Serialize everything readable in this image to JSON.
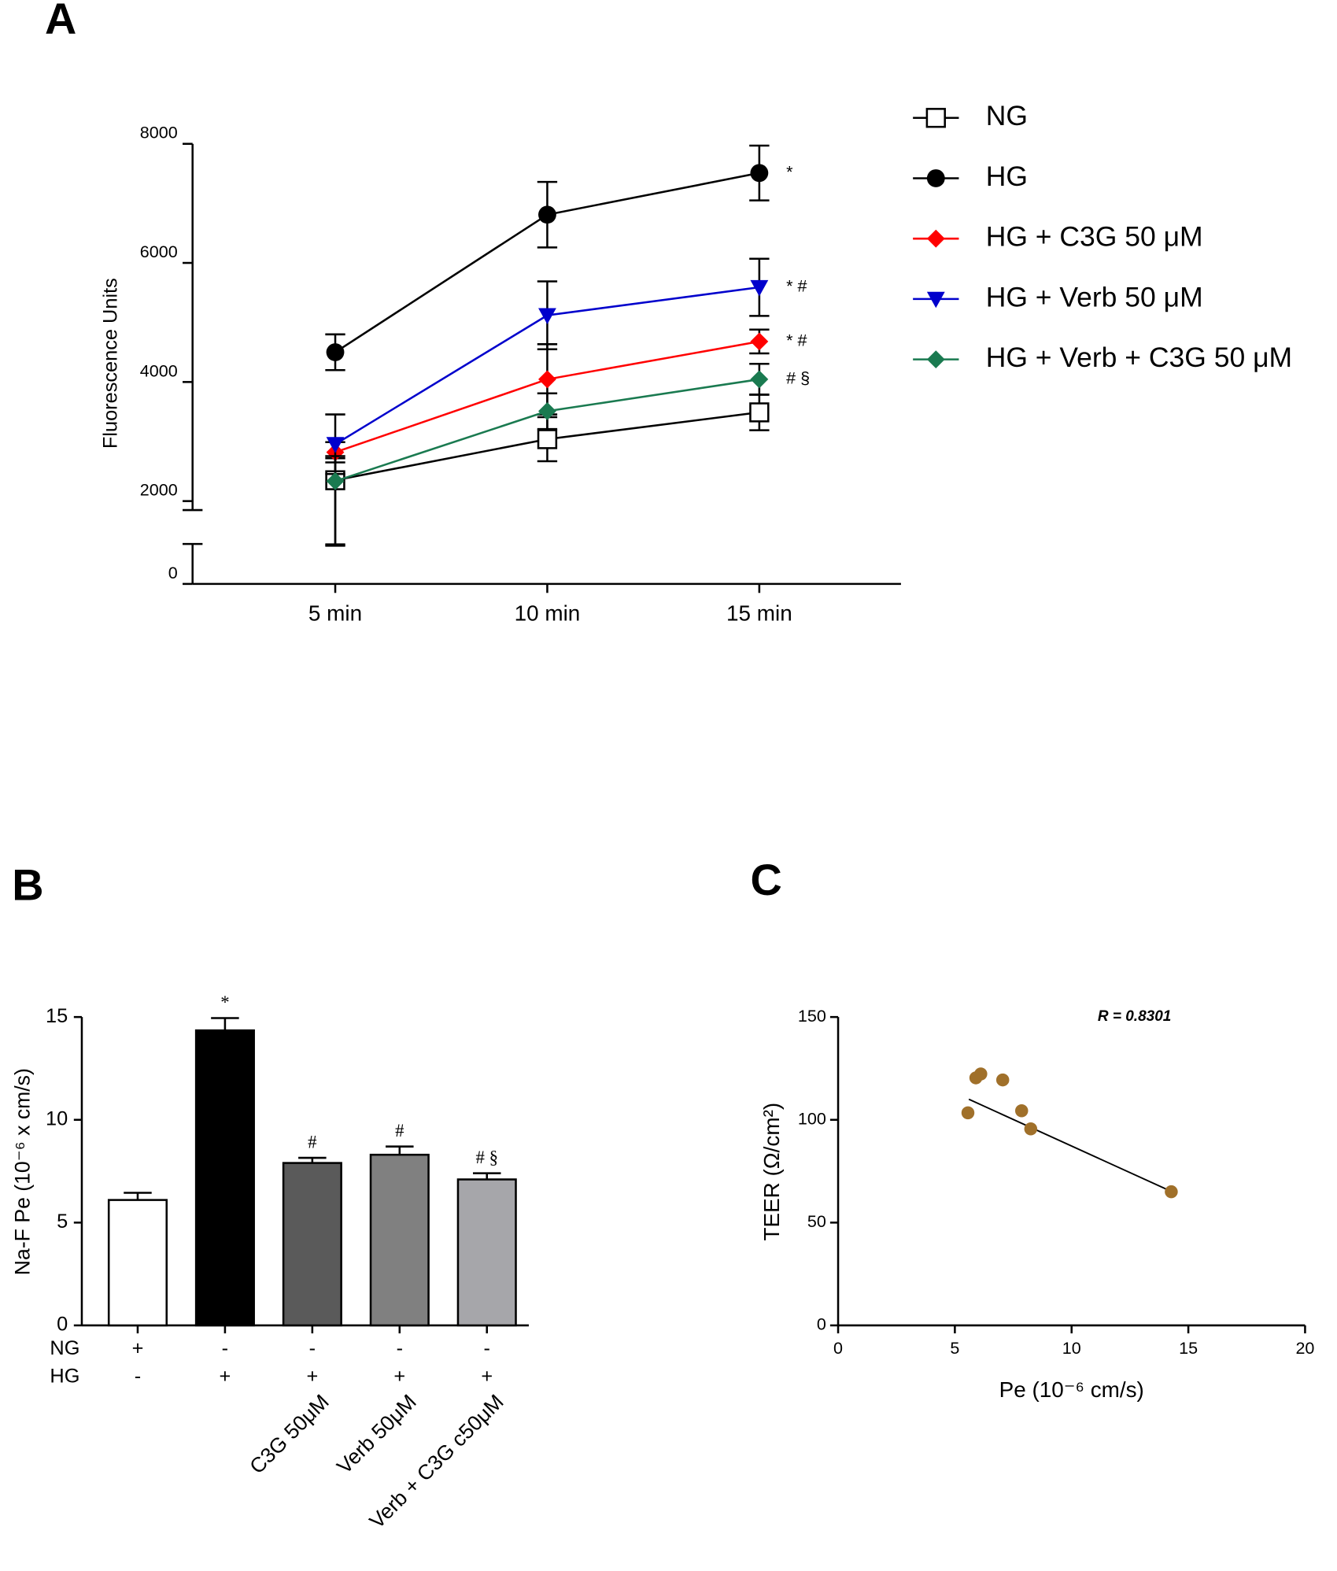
{
  "chart_data": [
    {
      "panel": "A",
      "type": "line",
      "ylabel": "Fluorescence Units",
      "categories": [
        "5 min",
        "10 min",
        "15 min"
      ],
      "ylim": [
        0,
        8000
      ],
      "yticks": [
        0,
        2000,
        4000,
        6000,
        8000
      ],
      "y_axis_break": true,
      "series": [
        {
          "name": "NG",
          "color": "#000000",
          "marker": "open-square",
          "values": [
            2350,
            3040,
            3490
          ],
          "errors": [
            370,
            370,
            300
          ]
        },
        {
          "name": "HG",
          "color": "#000000",
          "marker": "circle",
          "values": [
            4500,
            6810,
            7510
          ],
          "errors": [
            300,
            550,
            460
          ],
          "annotation": "*"
        },
        {
          "name": "HG + C3G 50 μM",
          "color": "#ff0000",
          "marker": "diamond",
          "values": [
            2820,
            4045,
            4680
          ],
          "errors": [
            170,
            590,
            200
          ],
          "annotation": "* #"
        },
        {
          "name": "HG + Verb 50 μM",
          "color": "#0000cc",
          "marker": "triangle-down",
          "values": [
            2955,
            5120,
            5590
          ],
          "errors": [
            500,
            570,
            480
          ],
          "annotation": "* #"
        },
        {
          "name": "HG + Verb + C3G 50 μM",
          "color": "#1a7a50",
          "marker": "diamond",
          "values": [
            2335,
            3510,
            4045
          ],
          "errors": [
            420,
            300,
            260
          ],
          "annotation": "# §"
        }
      ]
    },
    {
      "panel": "B",
      "type": "bar",
      "ylabel": "Na-F Pe (10⁻⁶ x cm/s)",
      "categories": [
        null,
        null,
        "C3G 50μM",
        "Verb 50μM",
        "Verb + C3G c50μM"
      ],
      "values": [
        6.1,
        14.35,
        7.9,
        8.3,
        7.1
      ],
      "errors": [
        0.35,
        0.6,
        0.25,
        0.4,
        0.3
      ],
      "colors": [
        "#ffffff",
        "#000000",
        "#5a5a5a",
        "#808080",
        "#a6a6aa"
      ],
      "annotations": [
        null,
        "*",
        "#",
        "#",
        "# §"
      ],
      "rows": [
        {
          "label": "NG",
          "values": [
            "+",
            "-",
            "-",
            "-",
            "-"
          ]
        },
        {
          "label": "HG",
          "values": [
            "-",
            "+",
            "+",
            "+",
            "+"
          ]
        }
      ],
      "ylim": [
        0,
        15
      ],
      "yticks": [
        0,
        5,
        10,
        15
      ]
    },
    {
      "panel": "C",
      "type": "scatter",
      "xlabel": "Pe (10⁻⁶ cm/s)",
      "ylabel": "TEER (Ω/cm²)",
      "annotation": "R = 0.8301",
      "x": [
        5.56,
        5.9,
        6.11,
        7.05,
        7.86,
        8.25,
        14.27
      ],
      "values": [
        103.4,
        120.4,
        122.3,
        119.4,
        104.4,
        95.6,
        65
      ],
      "color": "#a0702a",
      "trendline": {
        "x": [
          5.6,
          14.3
        ],
        "y": [
          110,
          65
        ]
      },
      "xlim": [
        0,
        20
      ],
      "xticks": [
        0,
        5,
        10,
        15,
        20
      ],
      "ylim": [
        0,
        150
      ],
      "yticks": [
        0,
        50,
        100,
        150
      ]
    }
  ]
}
